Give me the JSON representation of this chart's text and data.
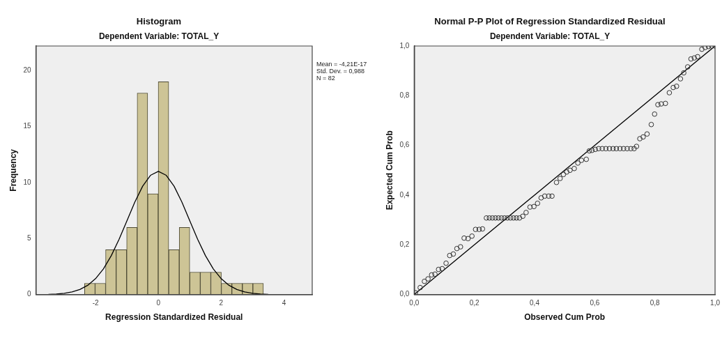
{
  "chart_data": [
    {
      "type": "histogram",
      "title": "Histogram",
      "subtitle": "Dependent Variable: TOTAL_Y",
      "xlabel": "Regression Standardized Residual",
      "ylabel": "Frequency",
      "bins": [
        -2.35,
        -2.015,
        -1.68,
        -1.345,
        -1.01,
        -0.675,
        -0.34,
        -0.005,
        0.33,
        0.665,
        1.0,
        1.335,
        1.67,
        2.005,
        2.34,
        2.675,
        3.01,
        3.345
      ],
      "values": [
        1,
        1,
        4,
        4,
        6,
        18,
        9,
        19,
        4,
        6,
        2,
        2,
        2,
        1,
        1,
        1,
        1
      ],
      "color": "#cdc496",
      "series": [
        {
          "type": "line",
          "color": "#000000",
          "marker": "none",
          "x": [
            -3.5,
            -3.25,
            -3,
            -2.75,
            -2.5,
            -2.25,
            -2,
            -1.75,
            -1.5,
            -1.25,
            -1,
            -0.75,
            -0.5,
            -0.25,
            0,
            0.25,
            0.5,
            0.75,
            1,
            1.25,
            1.5,
            1.75,
            2,
            2.25,
            2.5,
            2.75,
            3,
            3.25,
            3.5
          ],
          "values": [
            0.02,
            0.05,
            0.11,
            0.23,
            0.45,
            0.82,
            1.42,
            2.29,
            3.47,
            4.94,
            6.59,
            8.25,
            9.68,
            10.65,
            11,
            10.65,
            9.68,
            8.25,
            6.59,
            4.94,
            3.47,
            2.29,
            1.42,
            0.82,
            0.45,
            0.23,
            0.11,
            0.05,
            0.02
          ]
        }
      ],
      "xlim": [
        -3.9,
        4.9
      ],
      "ylim": [
        0,
        22.2
      ],
      "xticks": [
        -2,
        0,
        2,
        4
      ],
      "yticks": [
        0,
        5,
        10,
        15,
        20
      ],
      "grid": false,
      "legend": false,
      "annotations": [
        "Mean = -4,21E-17",
        "Std. Dev. = 0,988",
        "N = 82"
      ]
    },
    {
      "type": "scatter",
      "title": "Normal P-P Plot of Regression Standardized Residual",
      "subtitle": "Dependent Variable: TOTAL_Y",
      "xlabel": "Observed Cum Prob",
      "ylabel": "Expected Cum Prob",
      "series": [
        {
          "type": "scatter",
          "color": "#333333",
          "marker": "circle",
          "x": [
            0.004,
            0.02,
            0.034,
            0.046,
            0.058,
            0.069,
            0.081,
            0.093,
            0.106,
            0.118,
            0.13,
            0.142,
            0.154,
            0.166,
            0.179,
            0.192,
            0.204,
            0.216,
            0.227,
            0.24,
            0.25,
            0.26,
            0.27,
            0.28,
            0.29,
            0.3,
            0.31,
            0.32,
            0.33,
            0.34,
            0.35,
            0.361,
            0.372,
            0.385,
            0.398,
            0.41,
            0.422,
            0.434,
            0.447,
            0.458,
            0.473,
            0.485,
            0.496,
            0.507,
            0.518,
            0.532,
            0.544,
            0.556,
            0.572,
            0.582,
            0.591,
            0.602,
            0.613,
            0.625,
            0.637,
            0.649,
            0.661,
            0.672,
            0.684,
            0.696,
            0.708,
            0.72,
            0.731,
            0.739,
            0.75,
            0.761,
            0.774,
            0.788,
            0.799,
            0.81,
            0.821,
            0.835,
            0.848,
            0.861,
            0.872,
            0.885,
            0.896,
            0.909,
            0.92,
            0.931,
            0.942,
            0.956,
            0.967,
            0.978,
            0.989,
            1.0
          ],
          "values": [
            0.007,
            0.028,
            0.053,
            0.063,
            0.079,
            0.082,
            0.101,
            0.104,
            0.126,
            0.157,
            0.163,
            0.185,
            0.192,
            0.227,
            0.225,
            0.235,
            0.262,
            0.262,
            0.264,
            0.308,
            0.308,
            0.308,
            0.308,
            0.308,
            0.308,
            0.308,
            0.308,
            0.308,
            0.308,
            0.308,
            0.308,
            0.315,
            0.33,
            0.352,
            0.354,
            0.367,
            0.389,
            0.396,
            0.396,
            0.396,
            0.451,
            0.467,
            0.483,
            0.493,
            0.5,
            0.507,
            0.529,
            0.54,
            0.544,
            0.578,
            0.58,
            0.584,
            0.587,
            0.587,
            0.587,
            0.587,
            0.587,
            0.587,
            0.587,
            0.587,
            0.587,
            0.587,
            0.587,
            0.596,
            0.627,
            0.634,
            0.646,
            0.684,
            0.726,
            0.764,
            0.767,
            0.769,
            0.812,
            0.833,
            0.838,
            0.868,
            0.892,
            0.916,
            0.948,
            0.952,
            0.957,
            0.987,
            0.994,
            0.998,
            1.0,
            1.0
          ]
        },
        {
          "type": "line",
          "color": "#000000",
          "marker": "none",
          "x": [
            0,
            1
          ],
          "values": [
            0,
            1
          ]
        }
      ],
      "xlim": [
        0,
        1
      ],
      "ylim": [
        0,
        1
      ],
      "xticks": [
        {
          "value": 0,
          "label": "0,0"
        },
        {
          "value": 0.2,
          "label": "0,2"
        },
        {
          "value": 0.4,
          "label": "0,4"
        },
        {
          "value": 0.6,
          "label": "0,6"
        },
        {
          "value": 0.8,
          "label": "0,8"
        },
        {
          "value": 1,
          "label": "1,0"
        }
      ],
      "yticks": [
        {
          "value": 0,
          "label": "0,0"
        },
        {
          "value": 0.2,
          "label": "0,2"
        },
        {
          "value": 0.4,
          "label": "0,4"
        },
        {
          "value": 0.6,
          "label": "0,6"
        },
        {
          "value": 0.8,
          "label": "0,8"
        },
        {
          "value": 1,
          "label": "1,0"
        }
      ],
      "grid": false,
      "legend": false
    }
  ]
}
